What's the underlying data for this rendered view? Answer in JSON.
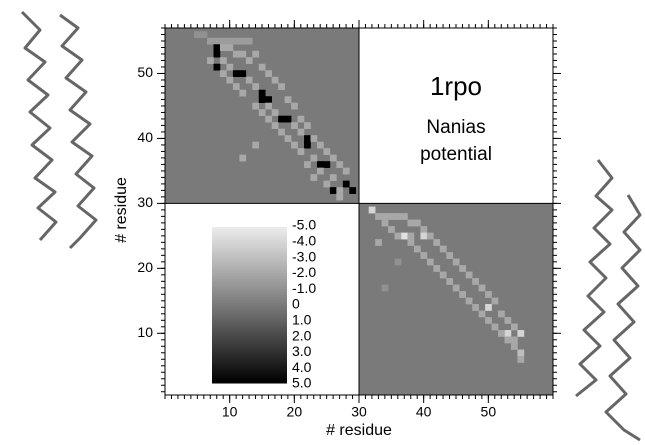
{
  "chart_data": {
    "type": "heatmap",
    "annotations": [
      "1rpo",
      "Nanias",
      "potential"
    ],
    "x_label": "# residue",
    "y_label": "# residue",
    "xlim": [
      0,
      60
    ],
    "ylim": [
      0.5,
      57
    ],
    "xticks": [
      10,
      20,
      30,
      40,
      50
    ],
    "yticks": [
      10,
      20,
      30,
      40,
      50
    ],
    "clim": [
      -5,
      5
    ],
    "colorbar_ticks": [
      {
        "value": -5,
        "label": "-5.0"
      },
      {
        "value": -4,
        "label": "-4.0"
      },
      {
        "value": -3,
        "label": "-3.0"
      },
      {
        "value": -2,
        "label": "-2.0"
      },
      {
        "value": -1,
        "label": "-1.0"
      },
      0,
      {
        "value": 1,
        "label": "1.0"
      },
      {
        "value": 2,
        "label": "2.0"
      },
      {
        "value": 3,
        "label": "3.0"
      },
      {
        "value": 4,
        "label": "4.0"
      },
      {
        "value": 5,
        "label": "5.0"
      }
    ],
    "cells": [
      [
        5,
        56,
        -1
      ],
      [
        6,
        56,
        -1
      ],
      [
        7,
        55,
        -1.5
      ],
      [
        8,
        55,
        -1.5
      ],
      [
        9,
        55,
        -1.5
      ],
      [
        10,
        55,
        -1.5
      ],
      [
        11,
        55,
        -1.5
      ],
      [
        12,
        55,
        -1.5
      ],
      [
        13,
        55,
        -1.5
      ],
      [
        8,
        54,
        5
      ],
      [
        9,
        54,
        -2
      ],
      [
        10,
        54,
        -2
      ],
      [
        8,
        53,
        5
      ],
      [
        11,
        53,
        -2
      ],
      [
        12,
        53,
        -2
      ],
      [
        14,
        53,
        -2
      ],
      [
        7,
        52,
        -2
      ],
      [
        9,
        52,
        -2
      ],
      [
        13,
        52,
        -2
      ],
      [
        8,
        51,
        5
      ],
      [
        10,
        51,
        -2
      ],
      [
        15,
        51,
        -2
      ],
      [
        11,
        50,
        5
      ],
      [
        12,
        50,
        5
      ],
      [
        9,
        50,
        -2
      ],
      [
        16,
        50,
        -2
      ],
      [
        13,
        49,
        -2
      ],
      [
        10,
        49,
        -2
      ],
      [
        17,
        49,
        -2
      ],
      [
        14,
        48,
        -2
      ],
      [
        11,
        48,
        -2
      ],
      [
        18,
        48,
        -2
      ],
      [
        15,
        47,
        5
      ],
      [
        12,
        47,
        -2
      ],
      [
        15,
        46,
        5
      ],
      [
        16,
        46,
        5
      ],
      [
        19,
        46,
        -2
      ],
      [
        14,
        45,
        -2
      ],
      [
        16,
        45,
        -2
      ],
      [
        20,
        45,
        -2
      ],
      [
        15,
        44,
        -2
      ],
      [
        17,
        44,
        -2
      ],
      [
        18,
        43,
        5
      ],
      [
        19,
        43,
        5
      ],
      [
        16,
        43,
        -2
      ],
      [
        21,
        43,
        -2
      ],
      [
        17,
        42,
        -2
      ],
      [
        20,
        42,
        -2
      ],
      [
        22,
        42,
        -2
      ],
      [
        18,
        41,
        -2
      ],
      [
        21,
        41,
        -2
      ],
      [
        22,
        40,
        5
      ],
      [
        19,
        40,
        -2
      ],
      [
        23,
        40,
        -2
      ],
      [
        22,
        39,
        5
      ],
      [
        20,
        39,
        -2
      ],
      [
        24,
        39,
        -2
      ],
      [
        14,
        39,
        -2
      ],
      [
        21,
        38,
        -2
      ],
      [
        25,
        38,
        -2
      ],
      [
        23,
        37,
        -2
      ],
      [
        26,
        37,
        -2
      ],
      [
        12,
        37,
        -2
      ],
      [
        24,
        36,
        5
      ],
      [
        25,
        36,
        5
      ],
      [
        22,
        36,
        -2
      ],
      [
        27,
        36,
        -2
      ],
      [
        24,
        35,
        -2
      ],
      [
        28,
        35,
        -2
      ],
      [
        26,
        34,
        -2
      ],
      [
        23,
        34,
        -2
      ],
      [
        28,
        33,
        5
      ],
      [
        25,
        33,
        -2
      ],
      [
        26,
        32,
        5
      ],
      [
        29,
        32,
        5
      ],
      [
        27,
        32,
        -2
      ],
      [
        27,
        31,
        -2
      ],
      [
        32,
        29,
        -4
      ],
      [
        33,
        28,
        -2
      ],
      [
        34,
        28,
        -2
      ],
      [
        35,
        28,
        -2
      ],
      [
        36,
        28,
        -2
      ],
      [
        37,
        28,
        -2
      ],
      [
        34,
        27,
        -2
      ],
      [
        38,
        27,
        -2
      ],
      [
        39,
        27,
        -2
      ],
      [
        35,
        26,
        -2
      ],
      [
        40,
        26,
        -2
      ],
      [
        37,
        25,
        -4.5
      ],
      [
        40,
        25,
        -4
      ],
      [
        36,
        25,
        -2
      ],
      [
        38,
        25,
        -2
      ],
      [
        41,
        25,
        -2
      ],
      [
        38,
        24,
        -2
      ],
      [
        42,
        24,
        -2
      ],
      [
        33,
        24,
        -2
      ],
      [
        39,
        23,
        -2
      ],
      [
        43,
        23,
        -2
      ],
      [
        40,
        22,
        -2
      ],
      [
        44,
        22,
        -2
      ],
      [
        41,
        21,
        -2
      ],
      [
        45,
        21,
        -2
      ],
      [
        36,
        21,
        -1
      ],
      [
        42,
        20,
        -2
      ],
      [
        46,
        20,
        -2
      ],
      [
        43,
        19,
        -2
      ],
      [
        47,
        19,
        -2
      ],
      [
        44,
        18,
        -2
      ],
      [
        48,
        18,
        -2
      ],
      [
        45,
        17,
        -2
      ],
      [
        49,
        17,
        -2
      ],
      [
        34,
        17,
        -1
      ],
      [
        46,
        16,
        -2
      ],
      [
        50,
        16,
        -2
      ],
      [
        47,
        15,
        -2
      ],
      [
        51,
        15,
        -2
      ],
      [
        48,
        14,
        -2
      ],
      [
        50,
        14,
        -4
      ],
      [
        49,
        13,
        -2
      ],
      [
        52,
        13,
        -2
      ],
      [
        50,
        12,
        -2
      ],
      [
        53,
        12,
        -2
      ],
      [
        51,
        11,
        -2
      ],
      [
        54,
        11,
        -2
      ],
      [
        53,
        10,
        -4
      ],
      [
        55,
        10,
        -4
      ],
      [
        52,
        10,
        -2
      ],
      [
        53,
        9,
        -2
      ],
      [
        54,
        9,
        -2
      ],
      [
        54,
        8,
        -2
      ],
      [
        55,
        7,
        -3
      ],
      [
        55,
        6,
        -2
      ]
    ]
  }
}
